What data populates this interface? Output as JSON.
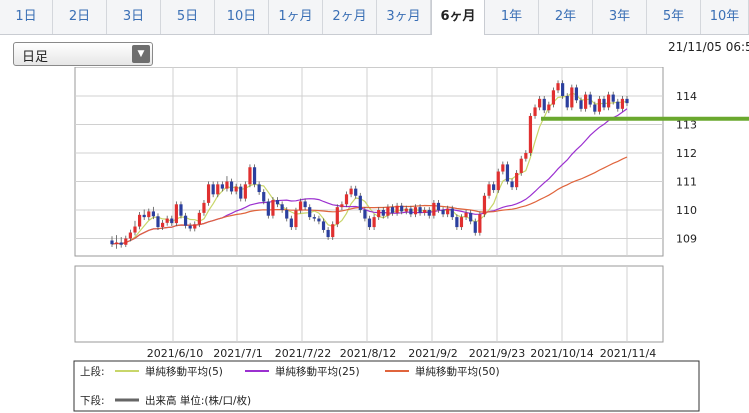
{
  "tabs": [
    "1日",
    "2日",
    "3日",
    "5日",
    "10日",
    "1ヶ月",
    "2ヶ月",
    "3ヶ月",
    "6ヶ月",
    "1年",
    "2年",
    "3年",
    "5年",
    "10年"
  ],
  "active_tab": "6ヶ月",
  "period_select": {
    "value": "日足"
  },
  "timestamp": "21/11/05 06:5",
  "colors": {
    "ma5": "#c8d66a",
    "ma25": "#9b30d0",
    "ma50": "#e0643c",
    "up": "#e03030",
    "down": "#2b3f9e",
    "support": "#6aa82e",
    "volume": "#666666"
  },
  "chart_data": {
    "type": "candlestick",
    "y_ticks": [
      109,
      110,
      111,
      112,
      113,
      114
    ],
    "ylim": [
      108.55,
      114.75
    ],
    "x_ticks": [
      "2021/6/10",
      "2021/7/1",
      "2021/7/22",
      "2021/8/12",
      "2021/9/2",
      "2021/9/23",
      "2021/10/14",
      "2021/11/4"
    ],
    "support_line": 113.2,
    "candles": [
      [
        108.93,
        108.8,
        109.08,
        108.7
      ],
      [
        108.8,
        108.86,
        109.12,
        108.64
      ],
      [
        108.86,
        108.78,
        109.05,
        108.68
      ],
      [
        108.78,
        109.0,
        109.1,
        108.7
      ],
      [
        109.0,
        109.21,
        109.31,
        108.9
      ],
      [
        109.21,
        109.42,
        109.62,
        109.11
      ],
      [
        109.42,
        109.83,
        109.93,
        109.32
      ],
      [
        109.83,
        109.75,
        110.02,
        109.65
      ],
      [
        109.75,
        109.95,
        110.05,
        109.65
      ],
      [
        109.95,
        109.78,
        110.11,
        109.68
      ],
      [
        109.78,
        109.4,
        109.88,
        109.3
      ],
      [
        109.4,
        109.55,
        109.65,
        109.3
      ],
      [
        109.55,
        109.7,
        109.8,
        109.45
      ],
      [
        109.7,
        109.54,
        109.8,
        109.44
      ],
      [
        109.54,
        110.2,
        110.3,
        109.44
      ],
      [
        110.2,
        109.8,
        110.3,
        109.7
      ],
      [
        109.8,
        109.45,
        109.9,
        109.35
      ],
      [
        109.45,
        109.35,
        109.55,
        109.25
      ],
      [
        109.35,
        109.5,
        109.6,
        109.25
      ],
      [
        109.5,
        109.9,
        110.0,
        109.4
      ],
      [
        109.9,
        110.25,
        110.35,
        109.8
      ],
      [
        110.25,
        110.9,
        111.0,
        110.15
      ],
      [
        110.9,
        110.55,
        111.0,
        110.45
      ],
      [
        110.55,
        110.9,
        111.0,
        110.45
      ],
      [
        110.9,
        110.75,
        111.0,
        110.65
      ],
      [
        110.75,
        111.0,
        111.19,
        110.65
      ],
      [
        111.0,
        110.65,
        111.1,
        110.55
      ],
      [
        110.65,
        110.82,
        110.92,
        110.55
      ],
      [
        110.82,
        110.4,
        110.92,
        110.3
      ],
      [
        110.4,
        110.9,
        111.0,
        110.3
      ],
      [
        110.9,
        111.5,
        111.6,
        110.8
      ],
      [
        111.5,
        110.9,
        111.6,
        110.8
      ],
      [
        110.9,
        110.63,
        111.0,
        110.53
      ],
      [
        110.63,
        110.3,
        110.73,
        110.2
      ],
      [
        110.3,
        109.8,
        110.4,
        109.7
      ],
      [
        109.8,
        110.35,
        110.45,
        109.7
      ],
      [
        110.35,
        110.2,
        110.45,
        110.1
      ],
      [
        110.2,
        110.0,
        110.3,
        109.9
      ],
      [
        110.0,
        109.7,
        110.1,
        109.6
      ],
      [
        109.7,
        109.4,
        109.8,
        109.3
      ],
      [
        109.4,
        109.98,
        110.08,
        109.3
      ],
      [
        109.98,
        110.3,
        110.4,
        109.88
      ],
      [
        110.3,
        110.1,
        110.4,
        110.0
      ],
      [
        110.1,
        109.75,
        110.2,
        109.65
      ],
      [
        109.75,
        109.7,
        109.85,
        109.6
      ],
      [
        109.7,
        109.6,
        109.8,
        109.5
      ],
      [
        109.6,
        109.3,
        109.7,
        109.2
      ],
      [
        109.3,
        109.05,
        109.4,
        108.95
      ],
      [
        109.05,
        109.5,
        109.6,
        108.95
      ],
      [
        109.5,
        110.1,
        110.2,
        109.4
      ],
      [
        110.1,
        110.2,
        110.3,
        110.0
      ],
      [
        110.2,
        110.55,
        110.65,
        110.1
      ],
      [
        110.55,
        110.75,
        110.85,
        110.45
      ],
      [
        110.75,
        110.5,
        110.85,
        110.4
      ],
      [
        110.5,
        110.0,
        110.6,
        109.9
      ],
      [
        110.0,
        109.7,
        110.1,
        109.6
      ],
      [
        109.7,
        109.4,
        109.8,
        109.3
      ],
      [
        109.4,
        109.75,
        109.85,
        109.3
      ],
      [
        109.75,
        110.0,
        110.1,
        109.65
      ],
      [
        110.0,
        109.8,
        110.1,
        109.7
      ],
      [
        109.8,
        110.1,
        110.2,
        109.7
      ],
      [
        110.1,
        109.9,
        110.2,
        109.8
      ],
      [
        109.9,
        110.15,
        110.25,
        109.8
      ],
      [
        110.15,
        109.95,
        110.25,
        109.85
      ],
      [
        109.95,
        110.05,
        110.15,
        109.85
      ],
      [
        110.05,
        109.85,
        110.15,
        109.75
      ],
      [
        109.85,
        110.1,
        110.2,
        109.75
      ],
      [
        110.1,
        109.9,
        110.2,
        109.8
      ],
      [
        109.9,
        110.0,
        110.1,
        109.8
      ],
      [
        110.0,
        109.8,
        110.1,
        109.7
      ],
      [
        109.8,
        110.25,
        110.35,
        109.7
      ],
      [
        110.25,
        110.0,
        110.35,
        109.9
      ],
      [
        110.0,
        109.85,
        110.1,
        109.75
      ],
      [
        109.85,
        110.05,
        110.15,
        109.75
      ],
      [
        110.05,
        109.75,
        110.15,
        109.65
      ],
      [
        109.75,
        109.4,
        109.85,
        109.3
      ],
      [
        109.4,
        109.75,
        109.85,
        109.3
      ],
      [
        109.75,
        109.9,
        110.0,
        109.65
      ],
      [
        109.9,
        109.6,
        110.0,
        109.5
      ],
      [
        109.6,
        109.2,
        109.7,
        109.1
      ],
      [
        109.2,
        109.85,
        109.95,
        109.1
      ],
      [
        109.85,
        110.5,
        110.6,
        109.75
      ],
      [
        110.5,
        110.9,
        111.0,
        110.4
      ],
      [
        110.9,
        110.7,
        111.0,
        110.6
      ],
      [
        110.7,
        111.35,
        111.45,
        110.6
      ],
      [
        111.35,
        111.6,
        111.7,
        111.25
      ],
      [
        111.6,
        111.0,
        111.7,
        110.9
      ],
      [
        111.0,
        110.8,
        111.1,
        110.7
      ],
      [
        110.8,
        111.3,
        111.4,
        110.7
      ],
      [
        111.3,
        111.8,
        111.9,
        111.2
      ],
      [
        111.8,
        112.0,
        112.1,
        111.7
      ],
      [
        112.0,
        113.3,
        113.4,
        111.9
      ],
      [
        113.3,
        113.6,
        113.7,
        113.2
      ],
      [
        113.6,
        113.9,
        114.0,
        113.5
      ],
      [
        113.9,
        113.5,
        114.0,
        113.4
      ],
      [
        113.5,
        113.7,
        113.8,
        113.4
      ],
      [
        113.7,
        114.2,
        114.3,
        113.6
      ],
      [
        114.2,
        114.45,
        114.55,
        114.1
      ],
      [
        114.45,
        114.0,
        114.55,
        113.9
      ],
      [
        114.0,
        113.6,
        114.1,
        113.5
      ],
      [
        113.6,
        114.3,
        114.4,
        113.5
      ],
      [
        114.3,
        113.85,
        114.4,
        113.75
      ],
      [
        113.85,
        113.55,
        113.95,
        113.45
      ],
      [
        113.55,
        114.05,
        114.15,
        113.45
      ],
      [
        114.05,
        113.7,
        114.15,
        113.6
      ],
      [
        113.7,
        113.45,
        113.8,
        113.35
      ],
      [
        113.45,
        113.9,
        114.0,
        113.35
      ],
      [
        113.9,
        113.6,
        114.0,
        113.5
      ],
      [
        113.6,
        114.05,
        114.15,
        113.5
      ],
      [
        114.05,
        113.8,
        114.15,
        113.7
      ],
      [
        113.8,
        113.55,
        113.9,
        113.45
      ],
      [
        113.55,
        113.9,
        114.0,
        113.45
      ],
      [
        113.9,
        113.75,
        114.0,
        113.65
      ]
    ],
    "legend_upper_label": "上段:",
    "legend_lower_label": "下段:",
    "series": [
      {
        "name": "単純移動平均(5)",
        "period": 5
      },
      {
        "name": "単純移動平均(25)",
        "period": 25
      },
      {
        "name": "単純移動平均(50)",
        "period": 50
      }
    ],
    "volume_legend": "出来高 単位:(株/口/枚)"
  }
}
